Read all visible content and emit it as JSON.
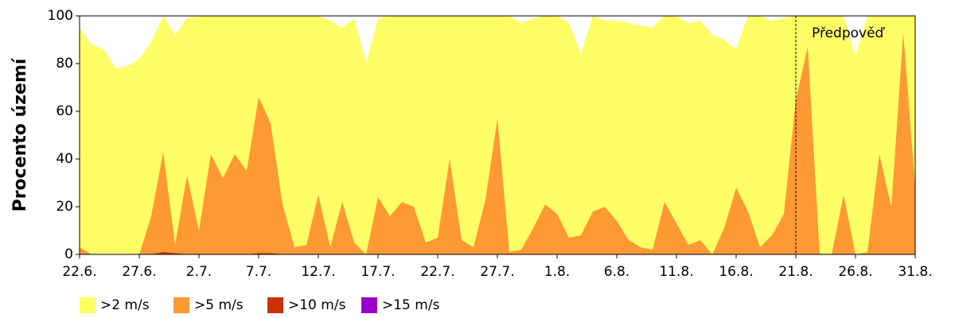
{
  "chart_data": {
    "type": "area",
    "y_label": "Procento území",
    "annotation": "Předpověď",
    "forecast_at": "21.8.",
    "categories": [
      "22.6.",
      null,
      null,
      null,
      null,
      "27.6.",
      null,
      null,
      null,
      null,
      "2.7.",
      null,
      null,
      null,
      null,
      "7.7.",
      null,
      null,
      null,
      null,
      "12.7.",
      null,
      null,
      null,
      null,
      "17.7.",
      null,
      null,
      null,
      null,
      "22.7.",
      null,
      null,
      null,
      null,
      "27.7.",
      null,
      null,
      null,
      null,
      "1.8.",
      null,
      null,
      null,
      null,
      "6.8.",
      null,
      null,
      null,
      null,
      "11.8.",
      null,
      null,
      null,
      null,
      "16.8.",
      null,
      null,
      null,
      null,
      "21.8.",
      null,
      null,
      null,
      null,
      "26.8.",
      null,
      null,
      null,
      null,
      "31.8."
    ],
    "series": [
      {
        "name": ">2 m/s",
        "color": "#ffff66",
        "values": [
          95,
          88,
          86,
          78,
          79,
          82,
          89,
          100,
          92,
          99,
          100,
          100,
          100,
          100,
          100,
          100,
          100,
          100,
          100,
          100,
          100,
          98,
          95,
          99,
          80,
          99,
          100,
          100,
          100,
          100,
          100,
          100,
          100,
          100,
          100,
          100,
          100,
          97,
          99,
          100,
          100,
          97,
          84,
          100,
          98,
          98,
          97,
          96,
          95,
          100,
          100,
          97,
          98,
          92,
          90,
          86,
          100,
          100,
          98,
          99,
          100,
          100,
          100,
          100,
          100,
          83,
          100,
          100,
          100,
          100,
          100
        ]
      },
      {
        "name": ">5 m/s",
        "color": "#ff9933",
        "values": [
          3,
          0,
          0,
          0,
          0,
          0,
          16,
          43,
          4,
          33,
          10,
          42,
          32,
          42,
          35,
          66,
          55,
          21,
          3,
          4,
          25,
          3,
          22,
          5,
          0,
          24,
          16,
          22,
          20,
          5,
          7,
          40,
          6,
          3,
          23,
          57,
          1,
          2,
          11,
          21,
          17,
          7,
          8,
          18,
          20,
          14,
          6,
          3,
          2,
          22,
          13,
          4,
          6,
          0,
          11,
          28,
          18,
          3,
          8,
          17,
          65,
          87,
          0,
          0,
          25,
          0,
          1,
          42,
          20,
          93,
          28
        ]
      },
      {
        "name": ">10 m/s",
        "color": "#cc3300",
        "values": [
          0,
          0,
          0,
          0,
          0,
          0,
          0,
          1,
          0.5,
          0,
          0,
          0,
          0,
          0,
          0,
          0.5,
          0.5,
          0,
          0,
          0,
          0,
          0,
          0,
          0,
          0,
          0,
          0,
          0,
          0,
          0,
          0,
          0,
          0,
          0,
          0,
          0,
          0,
          0,
          0,
          0,
          0,
          0,
          0,
          0,
          0,
          0,
          0,
          0,
          0,
          0,
          0,
          0,
          0,
          0,
          0,
          0,
          0,
          0,
          0,
          0,
          0,
          0,
          0,
          0,
          0,
          0,
          0,
          0,
          0,
          0,
          0
        ]
      },
      {
        "name": ">15 m/s",
        "color": "#9900cc",
        "values": [
          0,
          0,
          0,
          0,
          0,
          0,
          0,
          0,
          0,
          0,
          0,
          0,
          0,
          0,
          0,
          0,
          0,
          0,
          0,
          0,
          0,
          0,
          0,
          0,
          0,
          0,
          0,
          0,
          0,
          0,
          0,
          0,
          0,
          0,
          0,
          0,
          0,
          0,
          0,
          0,
          0,
          0,
          0,
          0,
          0,
          0,
          0,
          0,
          0,
          0,
          0,
          0,
          0,
          0,
          0,
          0,
          0,
          0,
          0,
          0,
          0,
          0,
          0,
          0,
          0,
          0,
          0,
          0,
          0,
          0,
          0
        ]
      }
    ],
    "ylim": [
      0,
      100
    ],
    "yticks": [
      0,
      20,
      40,
      60,
      80,
      100
    ],
    "legend": "bottom-left"
  }
}
